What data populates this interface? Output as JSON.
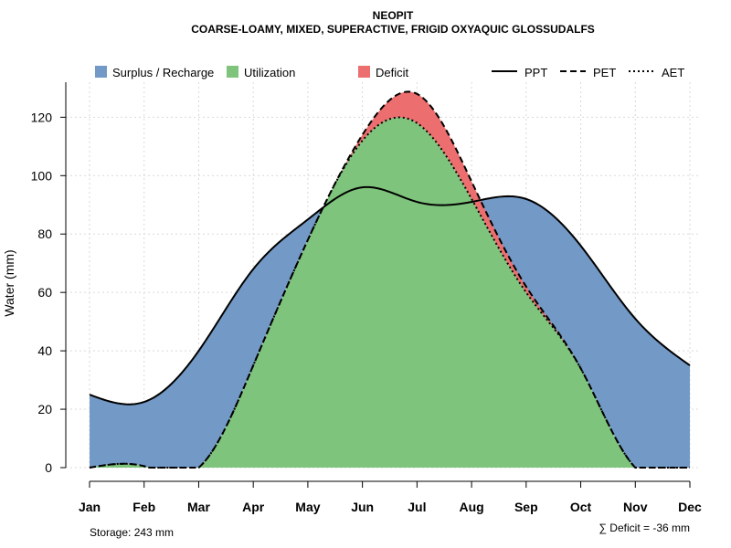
{
  "title": "NEOPIT",
  "subtitle": "COARSE-LOAMY, MIXED, SUPERACTIVE, FRIGID OXYAQUIC GLOSSUDALFS",
  "storage_text": "Storage: 243 mm",
  "deficit_text": "∑ Deficit = -36 mm",
  "colors": {
    "surplus": "#7399c6",
    "utilization": "#7fc47c",
    "deficit": "#ec6e6e"
  },
  "chart_data": {
    "type": "area",
    "title": "NEOPIT",
    "subtitle": "COARSE-LOAMY, MIXED, SUPERACTIVE, FRIGID OXYAQUIC GLOSSUDALFS",
    "xlabel": "",
    "ylabel": "Water (mm)",
    "categories": [
      "Jan",
      "Feb",
      "Mar",
      "Apr",
      "May",
      "Jun",
      "Jul",
      "Aug",
      "Sep",
      "Oct",
      "Nov",
      "Dec"
    ],
    "ylim": [
      0,
      132
    ],
    "yticks": [
      0,
      20,
      40,
      60,
      80,
      100,
      120
    ],
    "grid": true,
    "legend_position": "top",
    "legend": {
      "areas": [
        "Surplus / Recharge",
        "Utilization",
        "Deficit"
      ],
      "lines": [
        "PPT",
        "PET",
        "AET"
      ]
    },
    "series": [
      {
        "name": "PPT",
        "values": [
          25,
          22.5,
          40,
          68,
          85,
          96,
          91,
          91,
          92,
          76,
          51,
          35
        ]
      },
      {
        "name": "PET",
        "values": [
          0,
          0.5,
          0,
          35,
          78,
          114,
          128,
          98,
          62,
          34,
          0,
          0
        ]
      },
      {
        "name": "AET",
        "values": [
          0,
          0.5,
          0,
          35,
          78,
          112,
          118,
          92,
          60,
          34,
          0,
          0
        ]
      }
    ]
  }
}
